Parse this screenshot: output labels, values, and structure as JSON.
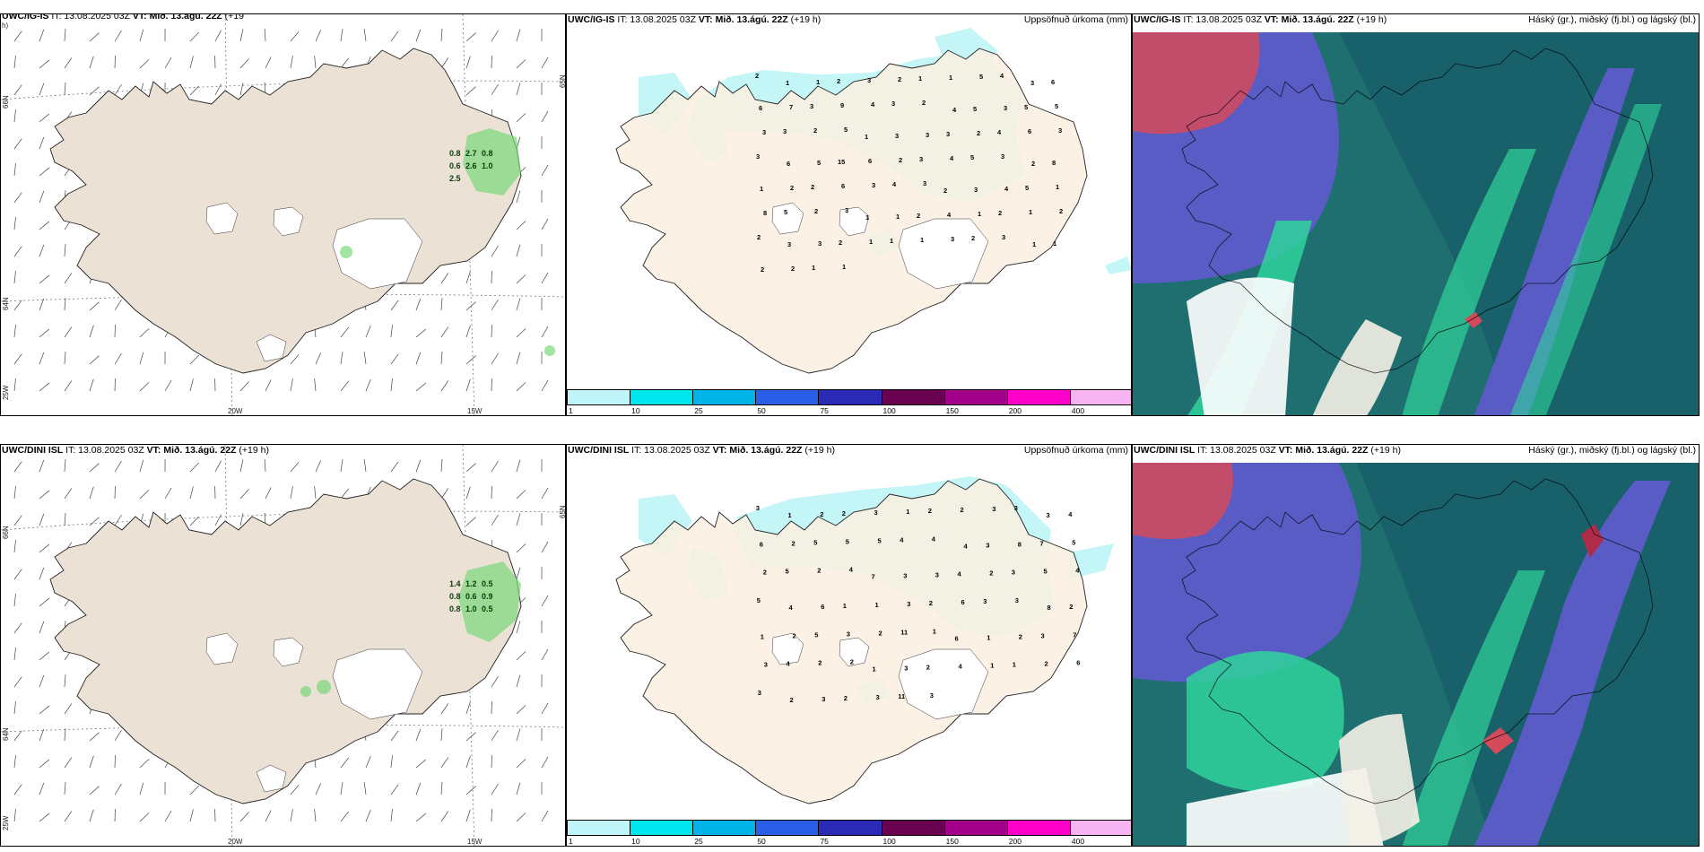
{
  "panels": {
    "top_left": {
      "header": {
        "model": "UWC/IG-IS",
        "it": "IT: 13.08.2025 03Z",
        "vt_label": "VT:",
        "vt": "Mið. 13.ágú. 22Z",
        "lead": "(+19",
        "lead2": "h)"
      }
    },
    "top_mid": {
      "header": {
        "model": "UWC/IG-IS",
        "it": "IT: 13.08.2025 03Z",
        "vt_label": "VT:",
        "vt": "Mið. 13.ágú. 22Z",
        "lead": "(+19 h)"
      },
      "right_title": "Uppsöfnuð úrkoma (mm)"
    },
    "top_right": {
      "header": {
        "model": "UWC/IG-IS",
        "it": "IT: 13.08.2025 03Z",
        "vt_label": "VT:",
        "vt": "Mið. 13.ágú. 22Z",
        "lead": "(+19 h)"
      },
      "right_title": "Háský (gr.), miðský (fj.bl.) og lágský (bl.)"
    },
    "bot_left": {
      "header": {
        "model": "UWC/DINI ISL",
        "it": "IT: 13.08.2025 03Z",
        "vt_label": "VT:",
        "vt": "Mið. 13.ágú. 22Z",
        "lead": "(+19 h)"
      }
    },
    "bot_mid": {
      "header": {
        "model": "UWC/DINI ISL",
        "it": "IT: 13.08.2025 03Z",
        "vt_label": "VT:",
        "vt": "Mið. 13.ágú. 22Z",
        "lead": "(+19 h)"
      },
      "right_title": "Uppsöfnuð úrkoma (mm)"
    },
    "bot_right": {
      "header": {
        "model": "UWC/DINI ISL",
        "it": "IT: 13.08.2025 03Z",
        "vt_label": "VT:",
        "vt": "Mið. 13.ágú. 22Z",
        "lead": "(+19 h)"
      },
      "right_title": "Háský (gr.), miðský (fj.bl.) og lágský (bl.)"
    }
  },
  "axes": {
    "lon_20w": "20W",
    "lon_15w": "15W",
    "lat_66n": "66N",
    "lat_64n": "64N",
    "lat_65n": "65N",
    "lon_25w": "25W"
  },
  "colorbar": {
    "levels": [
      "1",
      "10",
      "25",
      "50",
      "75",
      "100",
      "150",
      "200",
      "400"
    ],
    "colors": [
      "#bff5f8",
      "#00e6ee",
      "#00b4e8",
      "#2a5ee6",
      "#2a2ab4",
      "#6a0050",
      "#a0008a",
      "#ff00c8",
      "#f6b4f2"
    ]
  },
  "precip_labels_top": [
    "2",
    "1",
    "1",
    "2",
    "3",
    "2",
    "1",
    "1",
    "5",
    "4",
    "3",
    "6",
    "6",
    "7",
    "3",
    "9",
    "4",
    "3",
    "2",
    "4",
    "5",
    "3",
    "5",
    "5",
    "3",
    "3",
    "2",
    "5",
    "1",
    "3",
    "3",
    "3",
    "2",
    "4",
    "6",
    "3",
    "3",
    "6",
    "5",
    "15",
    "6",
    "2",
    "3",
    "4",
    "5",
    "3",
    "2",
    "8",
    "1",
    "2",
    "2",
    "6",
    "3",
    "4",
    "3",
    "2",
    "3",
    "4",
    "5",
    "1",
    "8",
    "5",
    "2",
    "3",
    "1",
    "1",
    "2",
    "4",
    "1",
    "2",
    "1",
    "2",
    "2",
    "3",
    "3",
    "2",
    "1",
    "1",
    "1",
    "3",
    "2",
    "3",
    "1",
    "1",
    "2",
    "2",
    "1",
    "1"
  ],
  "precip_labels_bot": [
    "3",
    "1",
    "2",
    "2",
    "3",
    "1",
    "2",
    "2",
    "3",
    "3",
    "3",
    "4",
    "6",
    "2",
    "5",
    "5",
    "5",
    "4",
    "4",
    "4",
    "3",
    "8",
    "7",
    "5",
    "2",
    "5",
    "2",
    "4",
    "7",
    "3",
    "3",
    "4",
    "2",
    "3",
    "5",
    "4",
    "5",
    "4",
    "6",
    "1",
    "1",
    "3",
    "2",
    "6",
    "3",
    "3",
    "8",
    "2",
    "1",
    "2",
    "5",
    "3",
    "2",
    "11",
    "1",
    "6",
    "1",
    "2",
    "3",
    "7",
    "3",
    "4",
    "2",
    "2",
    "1",
    "3",
    "2",
    "4",
    "1",
    "1",
    "2",
    "6",
    "3",
    "2",
    "3",
    "2",
    "3",
    "11",
    "3"
  ],
  "wind_values_top": [
    "0.8",
    "2.7",
    "0.8",
    "0.6",
    "2.6",
    "1.0",
    "2.5"
  ],
  "wind_values_bot": [
    "1.4",
    "1.2",
    "0.5",
    "0.8",
    "0.6",
    "0.9",
    "0.8",
    "1.0",
    "0.5"
  ]
}
